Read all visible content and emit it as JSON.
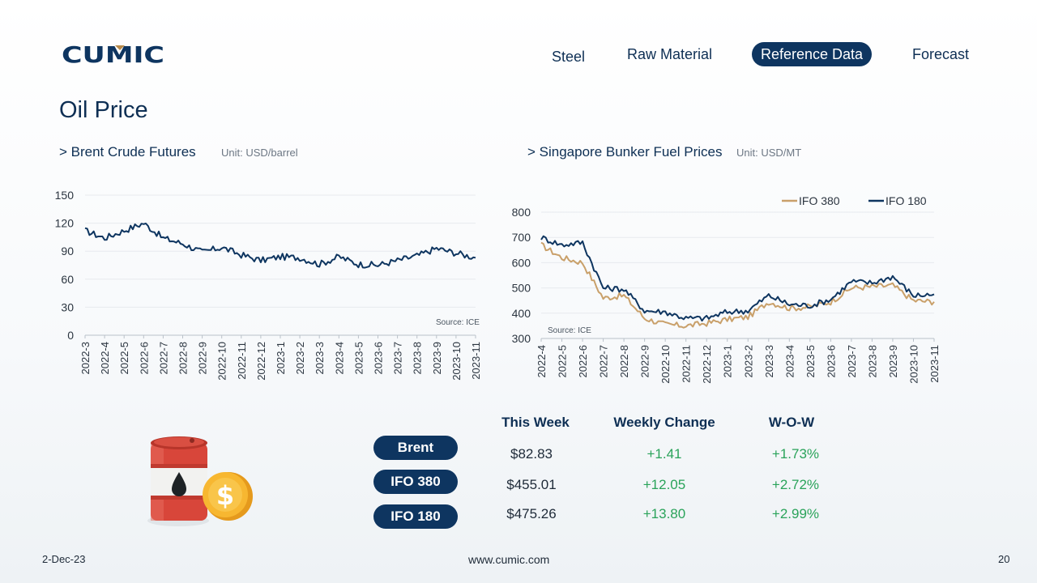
{
  "brand": {
    "logo_text": "CUMIC"
  },
  "nav": {
    "items": [
      {
        "label": "Steel",
        "active": false
      },
      {
        "label": "Raw Material",
        "active": false
      },
      {
        "label": "Reference Data",
        "active": true
      },
      {
        "label": "Forecast",
        "active": false
      }
    ]
  },
  "page": {
    "title": "Oil Price"
  },
  "brent_section": {
    "title": "> Brent Crude Futures",
    "unit": "Unit: USD/barrel"
  },
  "bunker_section": {
    "title": "> Singapore Bunker Fuel Prices",
    "unit": "Unit: USD/MT"
  },
  "colors": {
    "navy": "#0e3560",
    "ifo380": "#c9a06a",
    "ifo180": "#0e3560",
    "positive": "#2aa35a"
  },
  "chart_data": [
    {
      "type": "line",
      "title": "",
      "source": "Source: ICE",
      "ylim": [
        0,
        150
      ],
      "yticks": [
        0,
        30,
        60,
        90,
        120,
        150
      ],
      "grid": true,
      "x_tick_labels": [
        "2022-3",
        "2022-4",
        "2022-5",
        "2022-6",
        "2022-7",
        "2022-8",
        "2022-9",
        "2022-10",
        "2022-11",
        "2022-12",
        "2023-1",
        "2023-2",
        "2023-3",
        "2023-4",
        "2023-5",
        "2023-6",
        "2023-7",
        "2023-8",
        "2023-9",
        "2023-10",
        "2023-11"
      ],
      "series": [
        {
          "name": "",
          "color": "#0e3560",
          "x": [
            "2022-3",
            "2022-4",
            "2022-5",
            "2022-6",
            "2022-7",
            "2022-8",
            "2022-9",
            "2022-10",
            "2022-11",
            "2022-12",
            "2023-1",
            "2023-2",
            "2023-3",
            "2023-4",
            "2023-5",
            "2023-6",
            "2023-7",
            "2023-8",
            "2023-9",
            "2023-10",
            "2023-11"
          ],
          "values": [
            112,
            104,
            112,
            120,
            104,
            98,
            89,
            94,
            86,
            80,
            84,
            83,
            76,
            84,
            76,
            75,
            80,
            85,
            93,
            88,
            83
          ]
        }
      ]
    },
    {
      "type": "line",
      "title": "",
      "source": "Source: ICE",
      "ylim": [
        300,
        800
      ],
      "yticks": [
        300,
        400,
        500,
        600,
        700,
        800
      ],
      "grid": true,
      "legend_position": "top-right",
      "x_tick_labels": [
        "2022-4",
        "2022-5",
        "2022-6",
        "2022-7",
        "2022-8",
        "2022-9",
        "2022-10",
        "2022-11",
        "2022-12",
        "2023-1",
        "2023-2",
        "2023-3",
        "2023-4",
        "2023-5",
        "2023-6",
        "2023-7",
        "2023-8",
        "2023-9",
        "2023-10",
        "2023-11"
      ],
      "series": [
        {
          "name": "IFO 380",
          "color": "#c9a06a",
          "x": [
            "2022-4",
            "2022-5",
            "2022-6",
            "2022-7",
            "2022-8",
            "2022-9",
            "2022-10",
            "2022-11",
            "2022-12",
            "2023-1",
            "2023-2",
            "2023-3",
            "2023-4",
            "2023-5",
            "2023-6",
            "2023-7",
            "2023-8",
            "2023-9",
            "2023-10",
            "2023-11"
          ],
          "values": [
            670,
            620,
            600,
            460,
            470,
            380,
            355,
            350,
            360,
            375,
            385,
            445,
            420,
            425,
            445,
            500,
            505,
            510,
            450,
            445
          ]
        },
        {
          "name": "IFO 180",
          "color": "#0e3560",
          "x": [
            "2022-4",
            "2022-5",
            "2022-6",
            "2022-7",
            "2022-8",
            "2022-9",
            "2022-10",
            "2022-11",
            "2022-12",
            "2023-1",
            "2023-2",
            "2023-3",
            "2023-4",
            "2023-5",
            "2023-6",
            "2023-7",
            "2023-8",
            "2023-9",
            "2023-10",
            "2023-11"
          ],
          "values": [
            700,
            670,
            680,
            500,
            495,
            410,
            405,
            380,
            380,
            405,
            410,
            470,
            435,
            430,
            455,
            525,
            520,
            545,
            470,
            475
          ]
        }
      ]
    }
  ],
  "table": {
    "headers": [
      "This Week",
      "Weekly Change",
      "W-O-W"
    ],
    "rows": [
      {
        "name": "Brent",
        "price": "$82.83",
        "change": "+1.41",
        "wow": "+1.73%"
      },
      {
        "name": "IFO 380",
        "price": "$455.01",
        "change": "+12.05",
        "wow": "+2.72%"
      },
      {
        "name": "IFO 180",
        "price": "$475.26",
        "change": "+13.80",
        "wow": "+2.99%"
      }
    ]
  },
  "footer": {
    "date": "2-Dec-23",
    "website": "www.cumic.com",
    "page_number": "20"
  }
}
